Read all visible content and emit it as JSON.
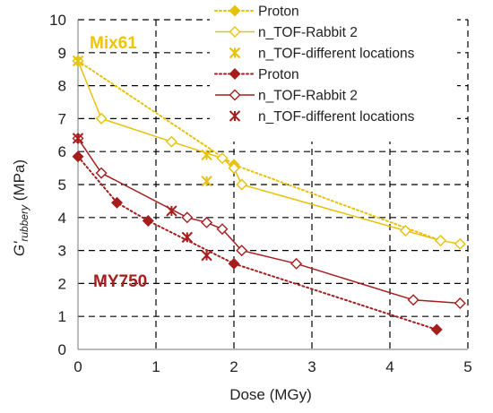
{
  "chart_data": {
    "type": "line",
    "xlabel": "Dose (MGy)",
    "ylabel_main": "G'",
    "ylabel_sub": "rubbery",
    "ylabel_unit": " (MPa)",
    "xlim": [
      0,
      5
    ],
    "ylim": [
      0,
      10
    ],
    "xticks": [
      "0",
      "1",
      "2",
      "3",
      "4",
      "5"
    ],
    "yticks": [
      "0",
      "1",
      "2",
      "3",
      "4",
      "5",
      "6",
      "7",
      "8",
      "9",
      "10"
    ],
    "grid": "dashed",
    "legend_placement": "top-center",
    "groups": [
      {
        "label": "Mix61",
        "color": "#eec500"
      },
      {
        "label": "MY750",
        "color": "#a51d1d"
      }
    ],
    "series": [
      {
        "name": "Proton",
        "group": "Mix61",
        "color": "#e8c10a",
        "line": "dotted",
        "marker": "filled-diamond",
        "points": [
          [
            0,
            8.75
          ],
          [
            2.0,
            5.6
          ],
          [
            4.65,
            3.3
          ]
        ]
      },
      {
        "name": "n_TOF-Rabbit 2",
        "group": "Mix61",
        "color": "#e8c10a",
        "line": "solid",
        "marker": "open-diamond",
        "points": [
          [
            0,
            8.75
          ],
          [
            0.3,
            7.0
          ],
          [
            1.2,
            6.3
          ],
          [
            1.85,
            5.8
          ],
          [
            2.0,
            5.5
          ],
          [
            2.1,
            5.0
          ],
          [
            4.2,
            3.6
          ],
          [
            4.65,
            3.3
          ],
          [
            4.9,
            3.2
          ]
        ]
      },
      {
        "name": "n_TOF-different locations",
        "group": "Mix61",
        "color": "#e8c10a",
        "line": "none",
        "marker": "asterisk",
        "points": [
          [
            0,
            8.75
          ],
          [
            1.65,
            5.9
          ],
          [
            1.65,
            5.1
          ]
        ]
      },
      {
        "name": "Proton",
        "group": "MY750",
        "color": "#a51d1d",
        "line": "dotted",
        "marker": "filled-diamond",
        "points": [
          [
            0,
            5.85
          ],
          [
            0.5,
            4.45
          ],
          [
            0.9,
            3.9
          ],
          [
            2.0,
            2.6
          ],
          [
            4.6,
            0.6
          ]
        ]
      },
      {
        "name": "n_TOF-Rabbit 2",
        "group": "MY750",
        "color": "#a51d1d",
        "line": "solid",
        "marker": "open-diamond",
        "points": [
          [
            0,
            6.4
          ],
          [
            0.3,
            5.35
          ],
          [
            1.4,
            4.0
          ],
          [
            1.65,
            3.85
          ],
          [
            1.85,
            3.65
          ],
          [
            2.1,
            3.0
          ],
          [
            2.8,
            2.6
          ],
          [
            4.3,
            1.5
          ],
          [
            4.9,
            1.4
          ]
        ]
      },
      {
        "name": "n_TOF-different locations",
        "group": "MY750",
        "color": "#a51d1d",
        "line": "none",
        "marker": "asterisk",
        "points": [
          [
            0,
            6.4
          ],
          [
            1.2,
            4.2
          ],
          [
            1.4,
            3.4
          ],
          [
            1.65,
            2.85
          ]
        ]
      }
    ]
  }
}
